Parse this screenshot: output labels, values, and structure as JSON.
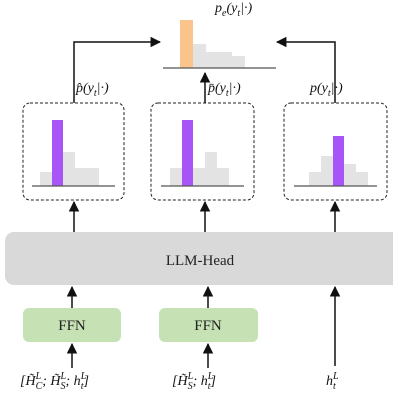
{
  "top_label": [
    [
      "p",
      "base"
    ],
    [
      "e",
      "sub"
    ],
    [
      "(y",
      "base"
    ],
    [
      "t",
      "sub"
    ],
    [
      "|·)",
      "base"
    ]
  ],
  "branch_labels": [
    [
      [
        "p̂(y",
        "base"
      ],
      [
        "t",
        "sub"
      ],
      [
        "|·)",
        "base"
      ]
    ],
    [
      [
        "p̄(y",
        "base"
      ],
      [
        "t",
        "sub"
      ],
      [
        "|·)",
        "base"
      ]
    ],
    [
      [
        "p(y",
        "base"
      ],
      [
        "t",
        "sub"
      ],
      [
        "|·)",
        "base"
      ]
    ]
  ],
  "llm_head": "LLM-Head",
  "ffn": [
    "FFN",
    "FFN"
  ],
  "inputs": [
    [
      [
        "[H̃",
        "base"
      ],
      [
        "L",
        "sup"
      ],
      [
        "C",
        "sub"
      ],
      [
        "; H̃",
        "base"
      ],
      [
        "L",
        "sup"
      ],
      [
        "S",
        "sub"
      ],
      [
        "; h",
        "base"
      ],
      [
        "L",
        "sup"
      ],
      [
        "t",
        "sub"
      ],
      [
        "]",
        "base"
      ]
    ],
    [
      [
        "[H̃",
        "base"
      ],
      [
        "L",
        "sup"
      ],
      [
        "S",
        "sub"
      ],
      [
        "; h",
        "base"
      ],
      [
        "L",
        "sup"
      ],
      [
        "t",
        "sub"
      ],
      [
        "]",
        "base"
      ]
    ],
    [
      [
        "h",
        "base"
      ],
      [
        "L",
        "sup"
      ],
      [
        "t",
        "sub"
      ]
    ]
  ]
}
